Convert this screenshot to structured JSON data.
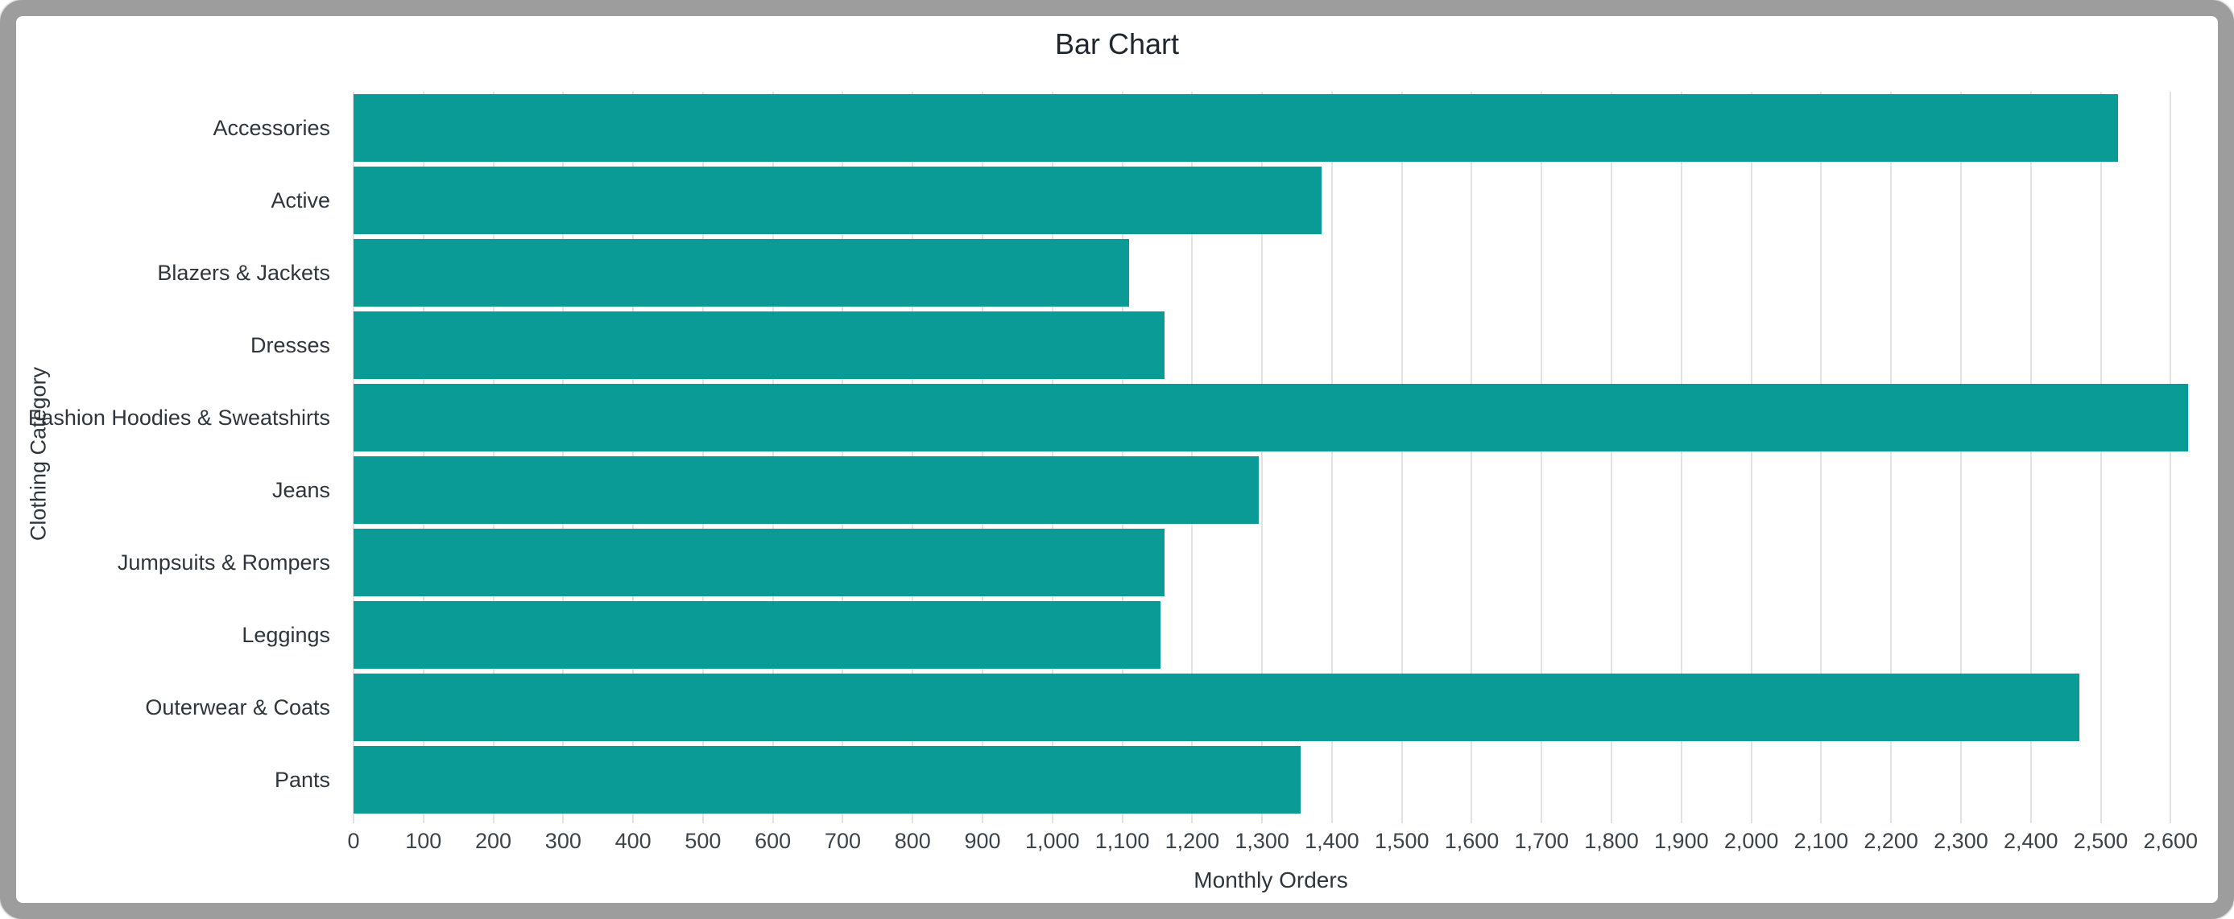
{
  "window": {
    "frame_color": "#9d9d9d",
    "background_color": "#ffffff"
  },
  "chart_data": {
    "type": "bar",
    "orientation": "horizontal",
    "title": "Bar Chart",
    "xlabel": "Monthly Orders",
    "ylabel": "Clothing Category",
    "categories": [
      "Accessories",
      "Active",
      "Blazers & Jackets",
      "Dresses",
      "Fashion Hoodies & Sweatshirts",
      "Jeans",
      "Jumpsuits & Rompers",
      "Leggings",
      "Outerwear & Coats",
      "Pants"
    ],
    "values": [
      2525,
      1385,
      1110,
      1160,
      2625,
      1295,
      1160,
      1155,
      2470,
      1355
    ],
    "xlim": [
      0,
      2625
    ],
    "xticks": [
      0,
      100,
      200,
      300,
      400,
      500,
      600,
      700,
      800,
      900,
      1000,
      1100,
      1200,
      1300,
      1400,
      1500,
      1600,
      1700,
      1800,
      1900,
      2000,
      2100,
      2200,
      2300,
      2400,
      2500,
      2600
    ],
    "xtick_labels": [
      "0",
      "100",
      "200",
      "300",
      "400",
      "500",
      "600",
      "700",
      "800",
      "900",
      "1,000",
      "1,100",
      "1,200",
      "1,300",
      "1,400",
      "1,500",
      "1,600",
      "1,700",
      "1,800",
      "1,900",
      "2,000",
      "2,100",
      "2,200",
      "2,300",
      "2,400",
      "2,500",
      "2,600"
    ],
    "bar_color": "#0b9b97",
    "gridline_color": "#e2e2e2",
    "grid": true,
    "legend": "none"
  }
}
